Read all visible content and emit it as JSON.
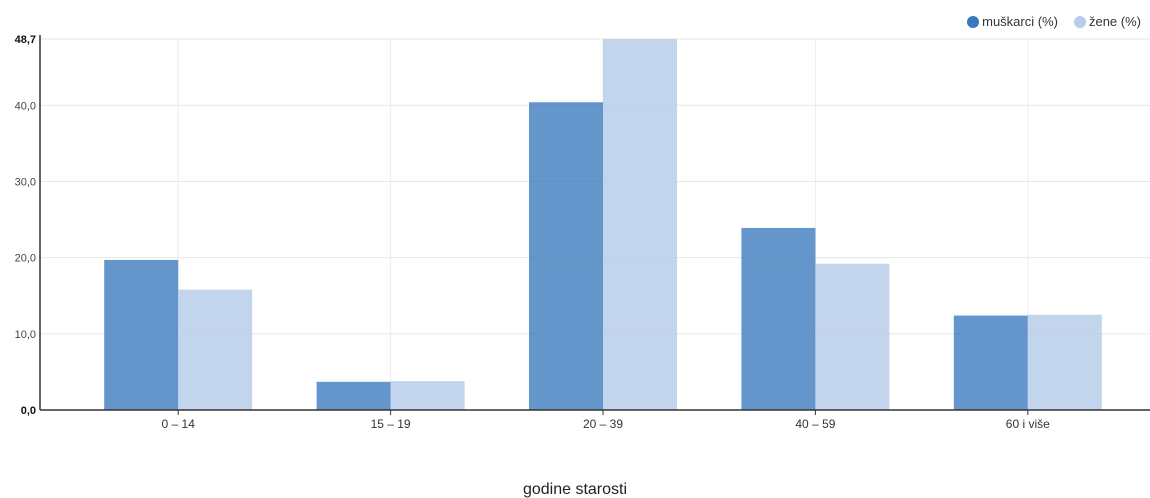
{
  "chart_data": {
    "type": "bar",
    "categories": [
      "0 – 14",
      "15 – 19",
      "20 – 39",
      "40 – 59",
      "60 i više"
    ],
    "series": [
      {
        "name": "muškarci (%)",
        "values": [
          19.7,
          3.7,
          40.4,
          23.9,
          12.4
        ],
        "color": "#3a78bd"
      },
      {
        "name": "žene (%)",
        "values": [
          15.8,
          3.8,
          48.7,
          19.2,
          12.5
        ],
        "color": "#b8cdea"
      }
    ],
    "y_ticks": [
      "0,0",
      "10,0",
      "20,0",
      "30,0",
      "40,0",
      "48,7"
    ],
    "y_tick_values": [
      0,
      10,
      20,
      30,
      40,
      48.7
    ],
    "ylim": [
      0,
      48.7
    ],
    "xlabel": "godine starosti",
    "ylabel": "",
    "grid": true,
    "legend_position": "top-right"
  }
}
